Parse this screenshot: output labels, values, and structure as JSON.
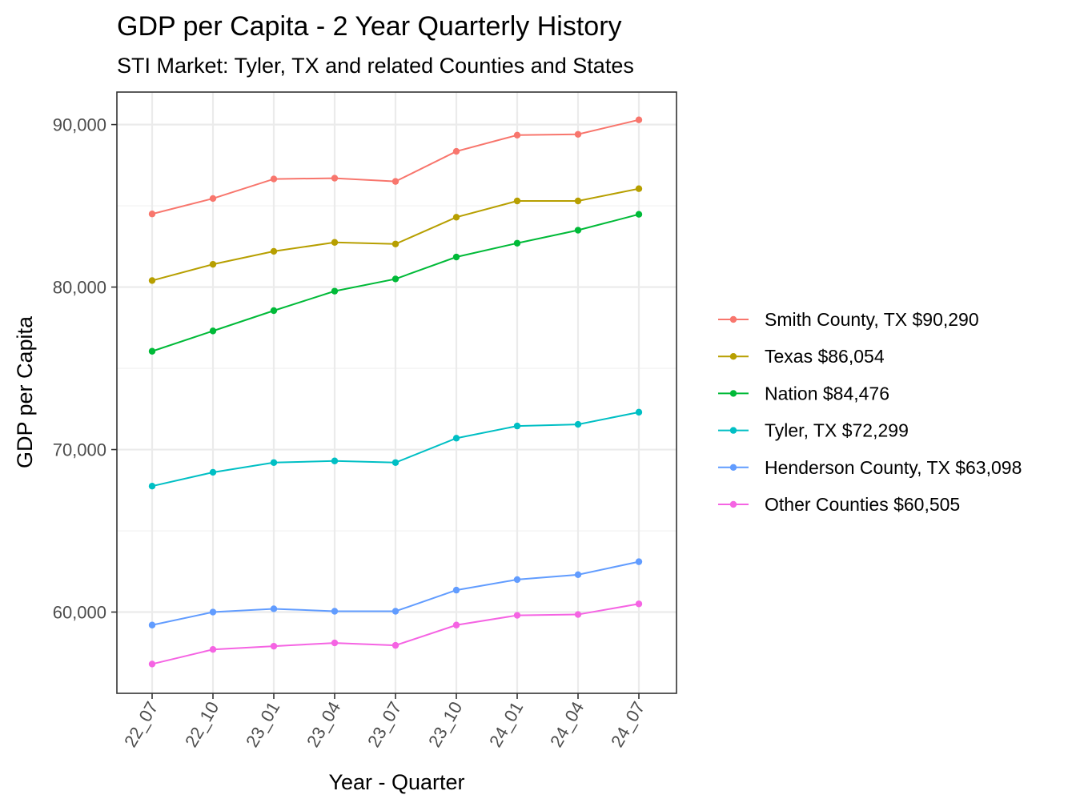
{
  "chart_data": {
    "type": "line",
    "title": "GDP per Capita - 2 Year Quarterly History",
    "subtitle": "STI Market: Tyler, TX and related Counties and States",
    "xlabel": "Year - Quarter",
    "ylabel": "GDP per Capita",
    "categories": [
      "22_07",
      "22_10",
      "23_01",
      "23_04",
      "23_07",
      "23_10",
      "24_01",
      "24_04",
      "24_07"
    ],
    "ylim": [
      55000,
      92000
    ],
    "y_ticks": [
      60000,
      70000,
      80000,
      90000
    ],
    "y_tick_labels": [
      "60,000",
      "70,000",
      "80,000",
      "90,000"
    ],
    "grid": true,
    "legend_position": "right",
    "series": [
      {
        "name": "Smith County, TX $90,290",
        "color": "#F8766D",
        "values": [
          84500,
          85450,
          86650,
          86700,
          86500,
          88350,
          89350,
          89400,
          90290
        ]
      },
      {
        "name": "Texas $86,054",
        "color": "#B79F00",
        "values": [
          80400,
          81400,
          82200,
          82750,
          82650,
          84300,
          85300,
          85300,
          86054
        ]
      },
      {
        "name": "Nation $84,476",
        "color": "#00BA38",
        "values": [
          76050,
          77300,
          78550,
          79750,
          80500,
          81850,
          82700,
          83500,
          84476
        ]
      },
      {
        "name": "Tyler, TX $72,299",
        "color": "#00BFC4",
        "values": [
          67750,
          68600,
          69200,
          69300,
          69200,
          70700,
          71450,
          71550,
          72299
        ]
      },
      {
        "name": "Henderson County, TX $63,098",
        "color": "#619CFF",
        "values": [
          59200,
          60000,
          60200,
          60050,
          60050,
          61350,
          62000,
          62300,
          63098
        ]
      },
      {
        "name": "Other Counties $60,505",
        "color": "#F564E3",
        "values": [
          56800,
          57700,
          57900,
          58100,
          57950,
          59200,
          59800,
          59850,
          60505
        ]
      }
    ]
  }
}
